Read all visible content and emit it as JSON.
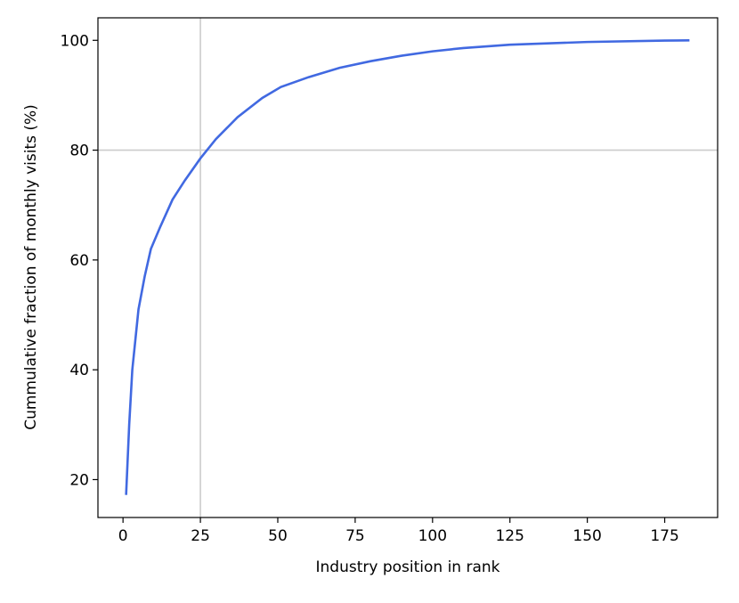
{
  "chart_data": {
    "type": "line",
    "xlabel": "Industry position in rank",
    "ylabel": "Cummulative fraction of monthly visits (%)",
    "series": [
      {
        "color": "#4169e1",
        "x": [
          1,
          2,
          3,
          5,
          7,
          9,
          12,
          16,
          20,
          25,
          30,
          37,
          45,
          51,
          60,
          70,
          80,
          90,
          100,
          110,
          125,
          150,
          175,
          183
        ],
        "values": [
          17.2,
          30,
          40,
          51,
          57,
          62,
          66,
          71,
          74.5,
          78.5,
          82,
          86,
          89.5,
          91.5,
          93.3,
          95,
          96.2,
          97.2,
          98,
          98.6,
          99.2,
          99.7,
          99.95,
          100
        ]
      }
    ],
    "xlim": [
      -8.1,
      192.1
    ],
    "ylim": [
      13.1,
      104.1
    ],
    "xticks": [
      0,
      25,
      50,
      75,
      100,
      125,
      150,
      175
    ],
    "yticks": [
      20,
      40,
      60,
      80,
      100
    ],
    "reference_lines": {
      "x": 25,
      "y": 80,
      "color": "#cccccc"
    }
  }
}
